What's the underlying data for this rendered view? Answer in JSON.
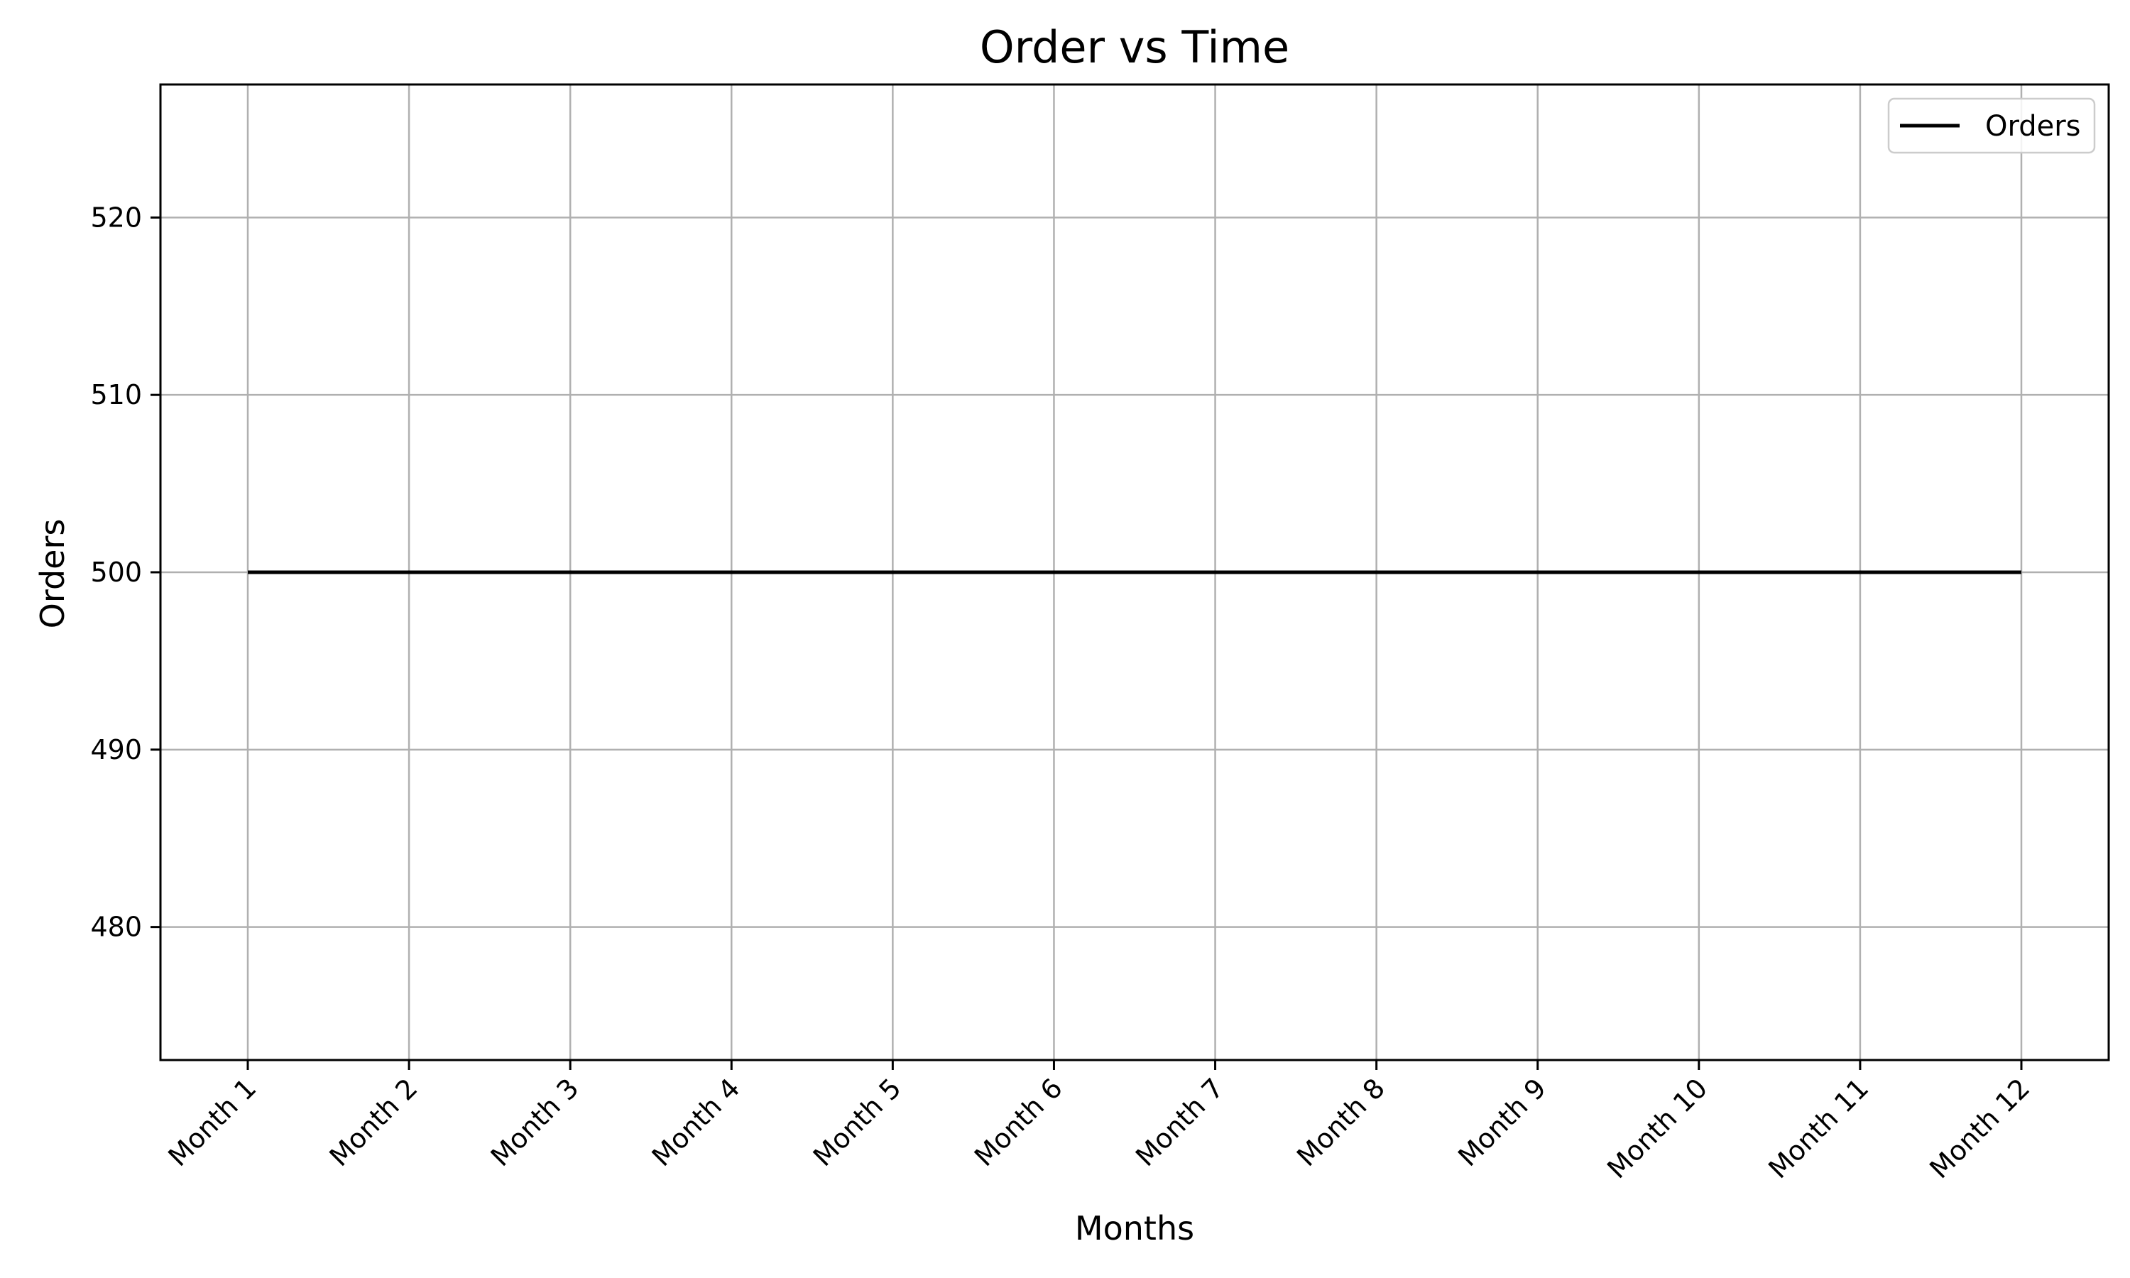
{
  "chart_data": {
    "type": "line",
    "title": "Order vs Time",
    "xlabel": "Months",
    "ylabel": "Orders",
    "categories": [
      "Month 1",
      "Month 2",
      "Month 3",
      "Month 4",
      "Month 5",
      "Month 6",
      "Month 7",
      "Month 8",
      "Month 9",
      "Month 10",
      "Month 11",
      "Month 12"
    ],
    "series": [
      {
        "name": "Orders",
        "values": [
          500,
          500,
          500,
          500,
          500,
          500,
          500,
          500,
          500,
          500,
          500,
          500
        ],
        "color": "#000000"
      }
    ],
    "ylim": [
      472.5,
      527.5
    ],
    "yticks": [
      480,
      490,
      500,
      510,
      520
    ],
    "grid": true,
    "legend_position": "top-right",
    "colors": {
      "grid": "#b0b0b0",
      "axes": "#000000",
      "background": "#ffffff"
    }
  }
}
